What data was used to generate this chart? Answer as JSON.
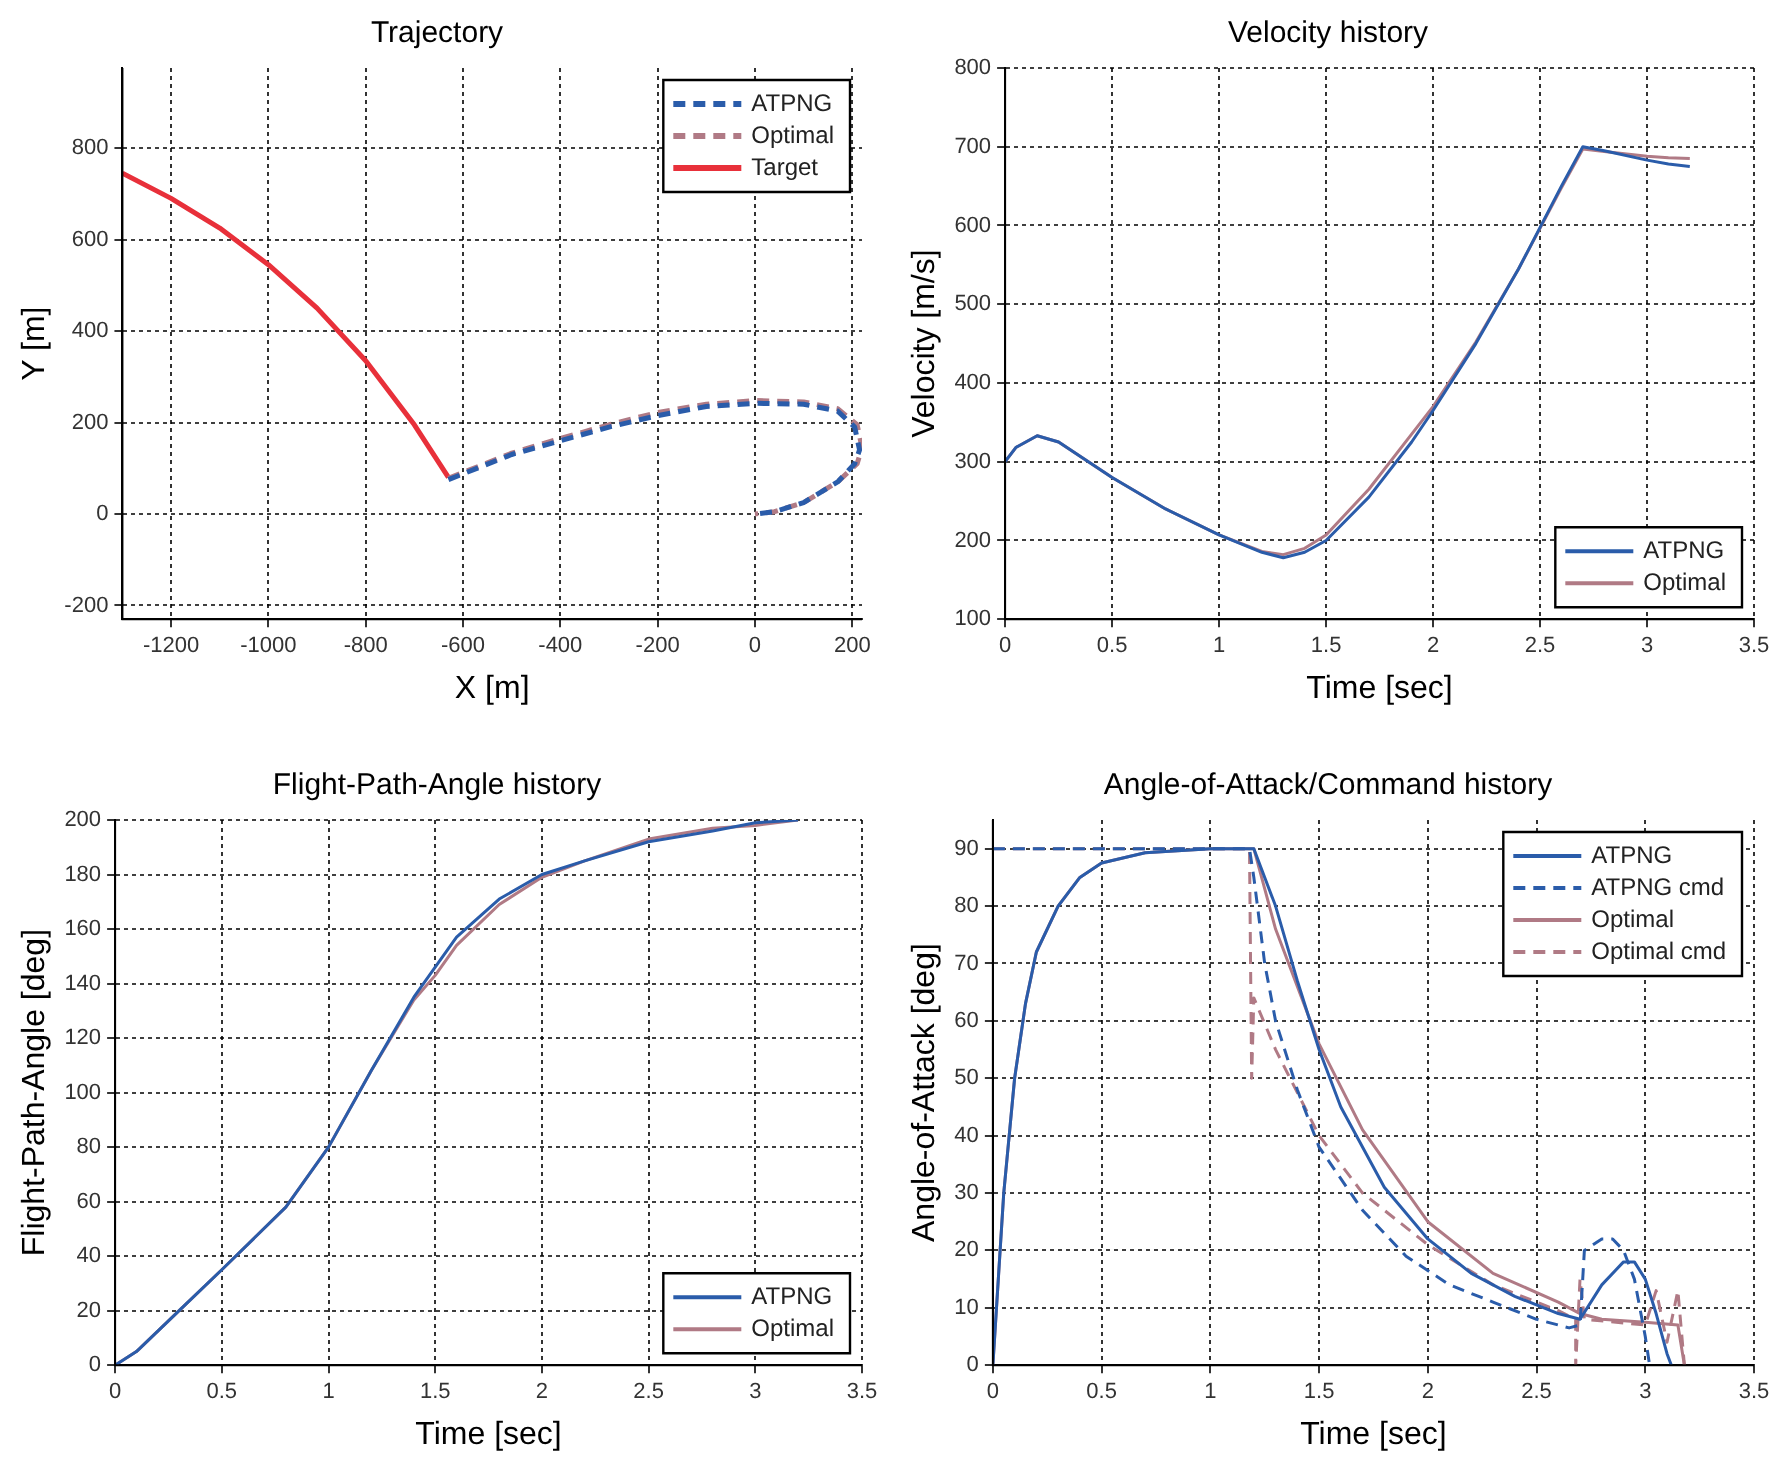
{
  "chart_data": [
    {
      "type": "line",
      "title": "Trajectory",
      "xlabel": "X [m]",
      "ylabel": "Y [m]",
      "xlim": [
        -1300,
        220
      ],
      "ylim": [
        -230,
        975
      ],
      "xticks": [
        -1200,
        -1000,
        -800,
        -600,
        -400,
        -200,
        0,
        200
      ],
      "yticks": [
        -200,
        0,
        200,
        400,
        600,
        800
      ],
      "grid": true,
      "legend": "top right",
      "marker": "none",
      "series": [
        {
          "name": "ATPNG",
          "color": "#2a5caa",
          "line_style": "dashed",
          "x": [
            -630,
            -500,
            -400,
            -300,
            -200,
            -100,
            0,
            100,
            170,
            205,
            215,
            205,
            170,
            100,
            40,
            0
          ],
          "values": [
            75,
            130,
            160,
            190,
            215,
            235,
            242,
            240,
            225,
            190,
            140,
            110,
            70,
            25,
            5,
            0
          ]
        },
        {
          "name": "Optimal",
          "color": "#b07a85",
          "line_style": "dashed",
          "x": [
            -630,
            -500,
            -400,
            -300,
            -200,
            -100,
            0,
            100,
            170,
            210,
            220,
            210,
            170,
            100,
            40,
            0
          ],
          "values": [
            78,
            133,
            165,
            195,
            222,
            240,
            248,
            245,
            230,
            195,
            145,
            110,
            70,
            25,
            5,
            0
          ]
        },
        {
          "name": "Target",
          "color": "#e8303a",
          "line_style": "solid",
          "x": [
            -1300,
            -1200,
            -1100,
            -1000,
            -900,
            -800,
            -700,
            -630
          ],
          "values": [
            745,
            690,
            625,
            545,
            450,
            335,
            195,
            80
          ]
        }
      ]
    },
    {
      "type": "line",
      "title": "Velocity history",
      "xlabel": "Time [sec]",
      "ylabel": "Velocity [m/s]",
      "xlim": [
        0,
        3.5
      ],
      "ylim": [
        100,
        800
      ],
      "xticks": [
        0,
        0.5,
        1,
        1.5,
        2,
        2.5,
        3,
        3.5
      ],
      "yticks": [
        100,
        200,
        300,
        400,
        500,
        600,
        700,
        800
      ],
      "grid": true,
      "legend": "bottom right",
      "marker": "none",
      "series": [
        {
          "name": "ATPNG",
          "color": "#2a5caa",
          "line_style": "solid",
          "x": [
            0,
            0.05,
            0.15,
            0.25,
            0.5,
            0.75,
            1,
            1.2,
            1.3,
            1.4,
            1.5,
            1.7,
            1.9,
            2,
            2.2,
            2.4,
            2.6,
            2.7,
            2.8,
            3,
            3.1,
            3.2
          ],
          "values": [
            300,
            318,
            333,
            325,
            280,
            240,
            207,
            185,
            178,
            185,
            200,
            255,
            325,
            365,
            450,
            545,
            650,
            700,
            695,
            683,
            678,
            675
          ]
        },
        {
          "name": "Optimal",
          "color": "#b07a85",
          "line_style": "solid",
          "x": [
            0,
            0.05,
            0.15,
            0.25,
            0.5,
            0.75,
            1,
            1.2,
            1.3,
            1.4,
            1.5,
            1.7,
            1.9,
            2,
            2.2,
            2.4,
            2.6,
            2.7,
            2.8,
            3,
            3.1,
            3.2
          ],
          "values": [
            300,
            318,
            333,
            325,
            280,
            240,
            207,
            186,
            182,
            190,
            207,
            265,
            335,
            370,
            452,
            545,
            648,
            697,
            694,
            688,
            686,
            685
          ]
        }
      ]
    },
    {
      "type": "line",
      "title": "Flight-Path-Angle history",
      "xlabel": "Time [sec]",
      "ylabel": "Flight-Path-Angle [deg]",
      "xlim": [
        0,
        3.5
      ],
      "ylim": [
        0,
        200
      ],
      "xticks": [
        0,
        0.5,
        1,
        1.5,
        2,
        2.5,
        3,
        3.5
      ],
      "yticks": [
        0,
        20,
        40,
        60,
        80,
        100,
        120,
        140,
        160,
        180,
        200
      ],
      "grid": true,
      "legend": "bottom right",
      "marker": "none",
      "series": [
        {
          "name": "ATPNG",
          "color": "#2a5caa",
          "line_style": "solid",
          "x": [
            0,
            0.1,
            0.3,
            0.5,
            0.8,
            1,
            1.2,
            1.4,
            1.5,
            1.6,
            1.8,
            2,
            2.2,
            2.5,
            2.8,
            3,
            3.2
          ],
          "values": [
            0,
            5,
            20,
            35,
            58,
            80,
            108,
            135,
            146,
            157,
            171,
            180,
            185,
            192,
            196,
            199,
            200
          ]
        },
        {
          "name": "Optimal",
          "color": "#b07a85",
          "line_style": "solid",
          "x": [
            0,
            0.1,
            0.3,
            0.5,
            0.8,
            1,
            1.2,
            1.4,
            1.5,
            1.6,
            1.8,
            2,
            2.2,
            2.5,
            2.8,
            3,
            3.2
          ],
          "values": [
            0,
            5,
            20,
            35,
            58,
            80,
            108,
            134,
            143,
            154,
            169,
            179,
            185,
            193,
            197,
            198,
            200
          ]
        }
      ]
    },
    {
      "type": "line",
      "title": "Angle-of-Attack/Command history",
      "xlabel": "Time [sec]",
      "ylabel": "Angle-of-Attack [deg]",
      "xlim": [
        0,
        3.5
      ],
      "ylim": [
        0,
        95
      ],
      "xticks": [
        0,
        0.5,
        1,
        1.5,
        2,
        2.5,
        3,
        3.5
      ],
      "yticks": [
        0,
        10,
        20,
        30,
        40,
        50,
        60,
        70,
        80,
        90
      ],
      "grid": true,
      "legend": "top right",
      "marker": "none",
      "series": [
        {
          "name": "ATPNG",
          "color": "#2a5caa",
          "line_style": "solid",
          "x": [
            0,
            0.05,
            0.1,
            0.15,
            0.2,
            0.3,
            0.4,
            0.5,
            0.7,
            1,
            1.2,
            1.3,
            1.4,
            1.5,
            1.6,
            1.8,
            2,
            2.2,
            2.4,
            2.6,
            2.7,
            2.8,
            2.9,
            2.95,
            3,
            3.05,
            3.1,
            3.12
          ],
          "values": [
            0,
            30,
            50,
            63,
            72,
            80,
            85,
            87.5,
            89.3,
            90,
            90,
            80,
            67,
            55,
            45,
            31,
            22,
            16,
            12,
            9,
            8,
            14,
            18,
            18,
            15,
            9,
            2,
            0
          ]
        },
        {
          "name": "ATPNG cmd",
          "color": "#2a5caa",
          "line_style": "dashed",
          "x": [
            0,
            1.18,
            1.2,
            1.25,
            1.3,
            1.4,
            1.5,
            1.7,
            1.9,
            2.1,
            2.3,
            2.5,
            2.65,
            2.7,
            2.72,
            2.8,
            2.85,
            2.9,
            2.95,
            3,
            3.02
          ],
          "values": [
            90,
            90,
            85,
            70,
            60,
            48,
            38,
            27,
            19,
            14,
            11,
            8,
            6.5,
            7,
            20,
            22,
            22,
            20,
            15,
            5,
            0
          ]
        },
        {
          "name": "Optimal",
          "color": "#b07a85",
          "line_style": "solid",
          "x": [
            0,
            0.05,
            0.1,
            0.15,
            0.2,
            0.3,
            0.4,
            0.5,
            0.7,
            1,
            1.2,
            1.3,
            1.5,
            1.7,
            2,
            2.3,
            2.6,
            2.7,
            2.8,
            3,
            3.15,
            3.18
          ],
          "values": [
            0,
            30,
            50,
            63,
            72,
            80,
            85,
            87.5,
            89.3,
            90,
            90,
            76,
            56,
            41,
            25,
            16,
            11,
            9,
            8,
            7.5,
            7,
            0
          ]
        },
        {
          "name": "Optimal cmd",
          "color": "#b07a85",
          "line_style": "dashed",
          "x": [
            0,
            1.18,
            1.19,
            1.2,
            1.3,
            1.5,
            1.7,
            2,
            2.3,
            2.6,
            2.68,
            2.68,
            2.7,
            2.72,
            3,
            3.05,
            3.1,
            3.15,
            3.18
          ],
          "values": [
            90,
            90,
            50,
            64,
            55,
            40,
            30,
            21,
            14,
            9.5,
            8,
            0,
            15,
            8,
            7,
            13,
            4,
            13,
            0
          ]
        }
      ]
    }
  ]
}
